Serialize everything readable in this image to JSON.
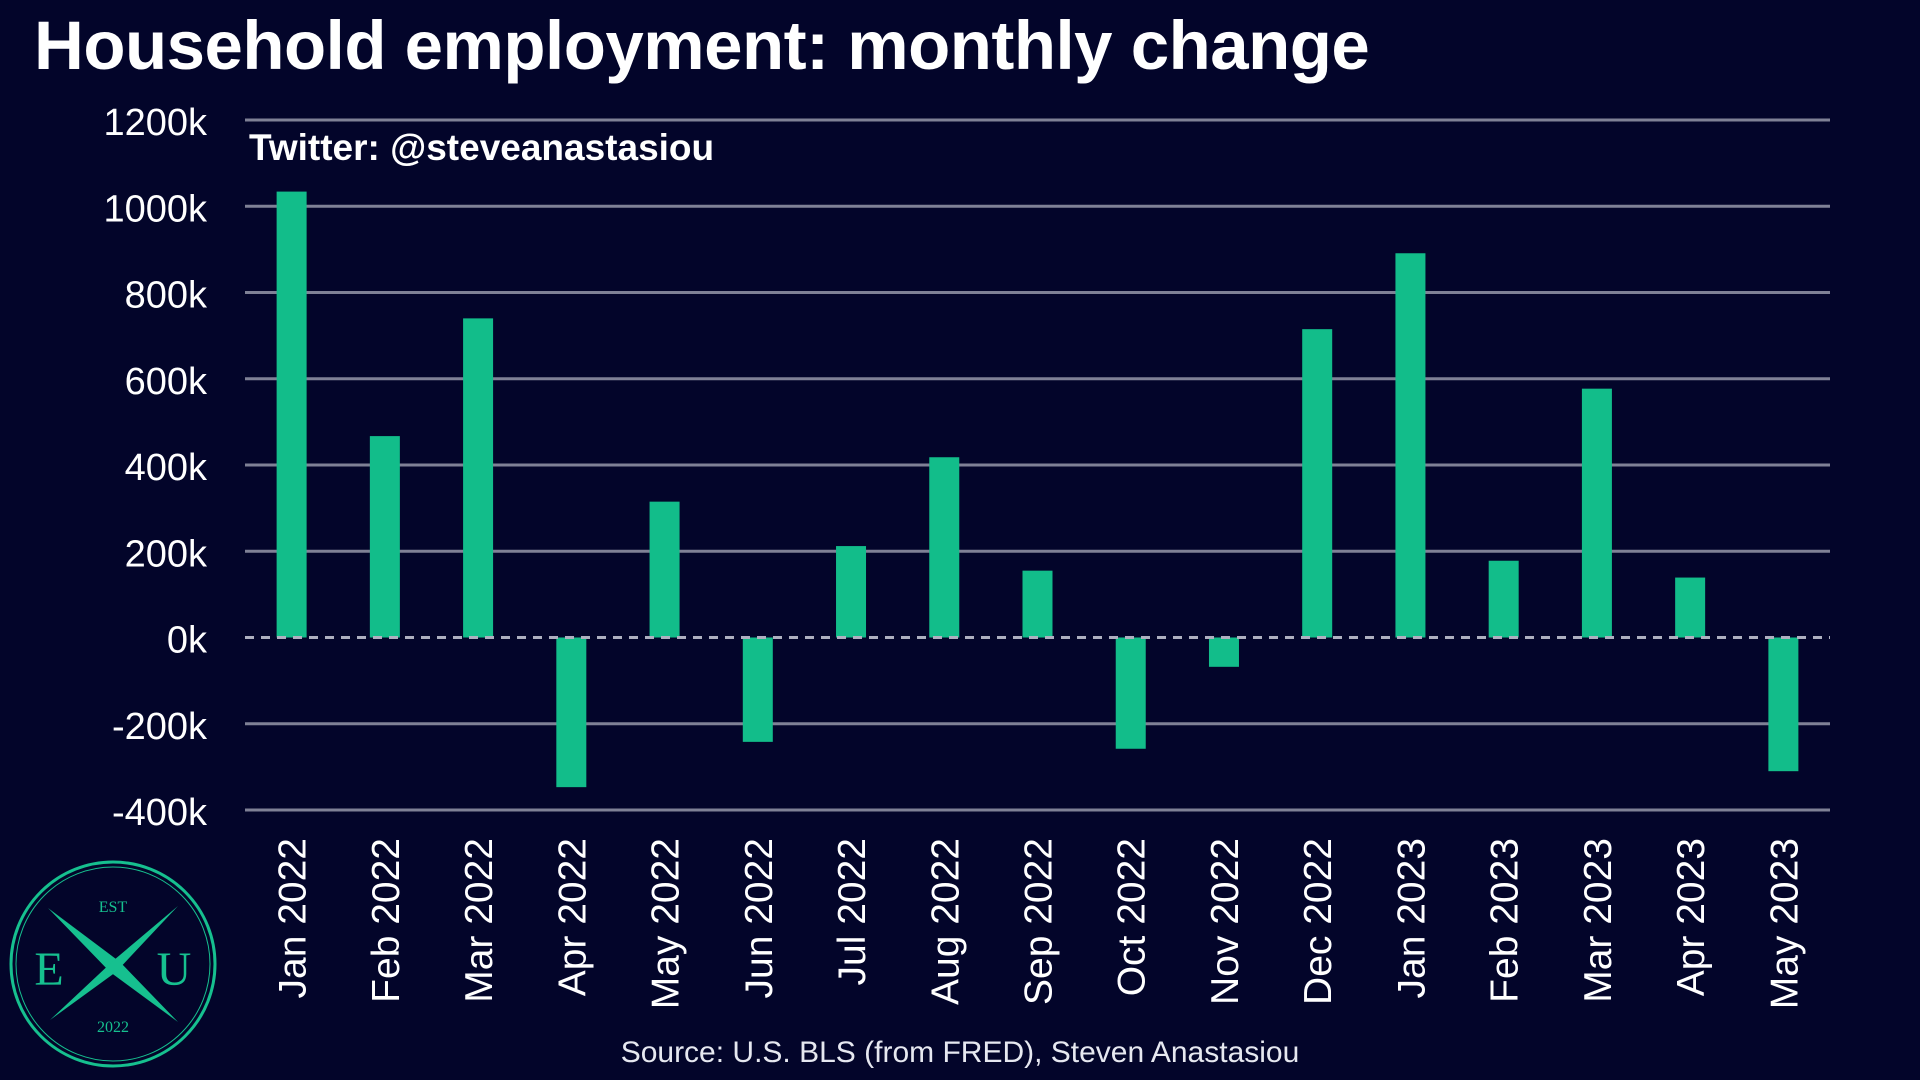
{
  "title": "Household employment: monthly change",
  "watermark": "Twitter: @steveanastasiou",
  "source": "Source: U.S. BLS (from FRED), Steven Anastasiou",
  "logo": {
    "text_top": "EST",
    "letters": "EXU",
    "text_bottom": "2022",
    "color": "#16c08f"
  },
  "colors": {
    "background": "#03052a",
    "bar": "#12bd8a",
    "grid": "#7f8196",
    "zero_line": "#aeb0c0",
    "text": "#ffffff"
  },
  "chart_data": {
    "type": "bar",
    "title": "Household employment: monthly change",
    "categories": [
      "Jan 2022",
      "Feb 2022",
      "Mar 2022",
      "Apr 2022",
      "May 2022",
      "Jun 2022",
      "Jul 2022",
      "Aug 2022",
      "Sep 2022",
      "Oct 2022",
      "Nov 2022",
      "Dec 2022",
      "Jan 2023",
      "Feb 2023",
      "Mar 2023",
      "Apr 2023",
      "May 2023"
    ],
    "values": [
      1034,
      467,
      740,
      -347,
      315,
      -242,
      212,
      418,
      155,
      -258,
      -68,
      715,
      891,
      178,
      577,
      139,
      -310
    ],
    "unit": "k",
    "ylim": [
      -400,
      1200
    ],
    "yticks": [
      -400,
      -200,
      0,
      200,
      400,
      600,
      800,
      1000,
      1200
    ],
    "ytick_labels": [
      "-400k",
      "-200k",
      "0k",
      "200k",
      "400k",
      "600k",
      "800k",
      "1000k",
      "1200k"
    ],
    "grid": true,
    "zero_line": "dashed",
    "legend": "none"
  }
}
